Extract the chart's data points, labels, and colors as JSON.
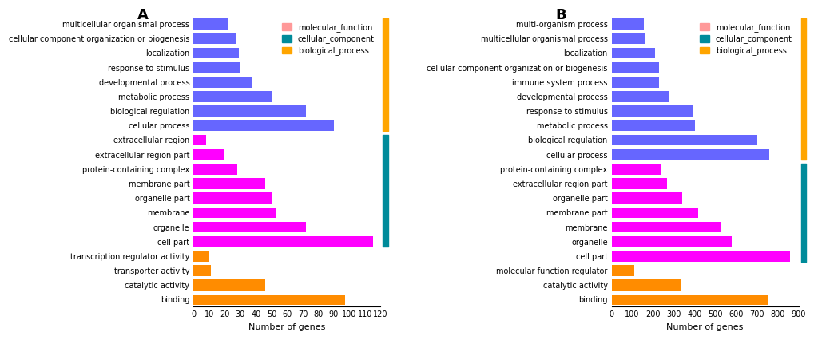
{
  "panel_A": {
    "title": "A",
    "categories": [
      "multicellular organismal process",
      "cellular component organization or biogenesis",
      "localization",
      "response to stimulus",
      "developmental process",
      "metabolic process",
      "biological regulation",
      "cellular process",
      "extracellular region",
      "extracellular region part",
      "protein-containing complex",
      "membrane part",
      "organelle part",
      "membrane",
      "organelle",
      "cell part",
      "transcription regulator activity",
      "transporter activity",
      "catalytic activity",
      "binding"
    ],
    "values": [
      22,
      27,
      29,
      30,
      37,
      50,
      72,
      90,
      8,
      20,
      28,
      46,
      50,
      53,
      72,
      115,
      10,
      11,
      46,
      97
    ],
    "colors": [
      "#6666ff",
      "#6666ff",
      "#6666ff",
      "#6666ff",
      "#6666ff",
      "#6666ff",
      "#6666ff",
      "#6666ff",
      "#ff00ff",
      "#ff00ff",
      "#ff00ff",
      "#ff00ff",
      "#ff00ff",
      "#ff00ff",
      "#ff00ff",
      "#ff00ff",
      "#ff8c00",
      "#ff8c00",
      "#ff8c00",
      "#ff8c00"
    ],
    "xlim": [
      0,
      120
    ],
    "xticks": [
      0,
      10,
      20,
      30,
      40,
      50,
      60,
      70,
      80,
      90,
      100,
      110,
      120
    ],
    "xlabel": "Number of genes"
  },
  "panel_B": {
    "title": "B",
    "categories": [
      "multi-organism process",
      "multicellular organismal process",
      "localization",
      "cellular component organization or biogenesis",
      "immune system process",
      "developmental process",
      "response to stimulus",
      "metabolic process",
      "biological regulation",
      "cellular process",
      "protein-containing complex",
      "extracellular region part",
      "organelle part",
      "membrane part",
      "membrane",
      "organelle",
      "cell part",
      "molecular function regulator",
      "catalytic activity",
      "binding"
    ],
    "values": [
      155,
      160,
      210,
      230,
      230,
      275,
      390,
      400,
      700,
      760,
      235,
      265,
      340,
      415,
      530,
      580,
      860,
      110,
      335,
      750
    ],
    "colors": [
      "#6666ff",
      "#6666ff",
      "#6666ff",
      "#6666ff",
      "#6666ff",
      "#6666ff",
      "#6666ff",
      "#6666ff",
      "#6666ff",
      "#6666ff",
      "#ff00ff",
      "#ff00ff",
      "#ff00ff",
      "#ff00ff",
      "#ff00ff",
      "#ff00ff",
      "#ff00ff",
      "#ff8c00",
      "#ff8c00",
      "#ff8c00"
    ],
    "xlim": [
      0,
      900
    ],
    "xticks": [
      0,
      100,
      200,
      300,
      400,
      500,
      600,
      700,
      800,
      900
    ],
    "xlabel": "Number of genes"
  },
  "legend": {
    "molecular_function_color": "#ff9999",
    "cellular_component_color": "#008b9a",
    "biological_process_color": "#ffa500"
  },
  "bp_color": "#6666ff",
  "cc_color": "#ff00ff",
  "mf_color": "#ffa500",
  "bar_height": 0.75,
  "background_color": "#ffffff",
  "title_fontsize": 13,
  "axis_fontsize": 8,
  "tick_fontsize": 7
}
